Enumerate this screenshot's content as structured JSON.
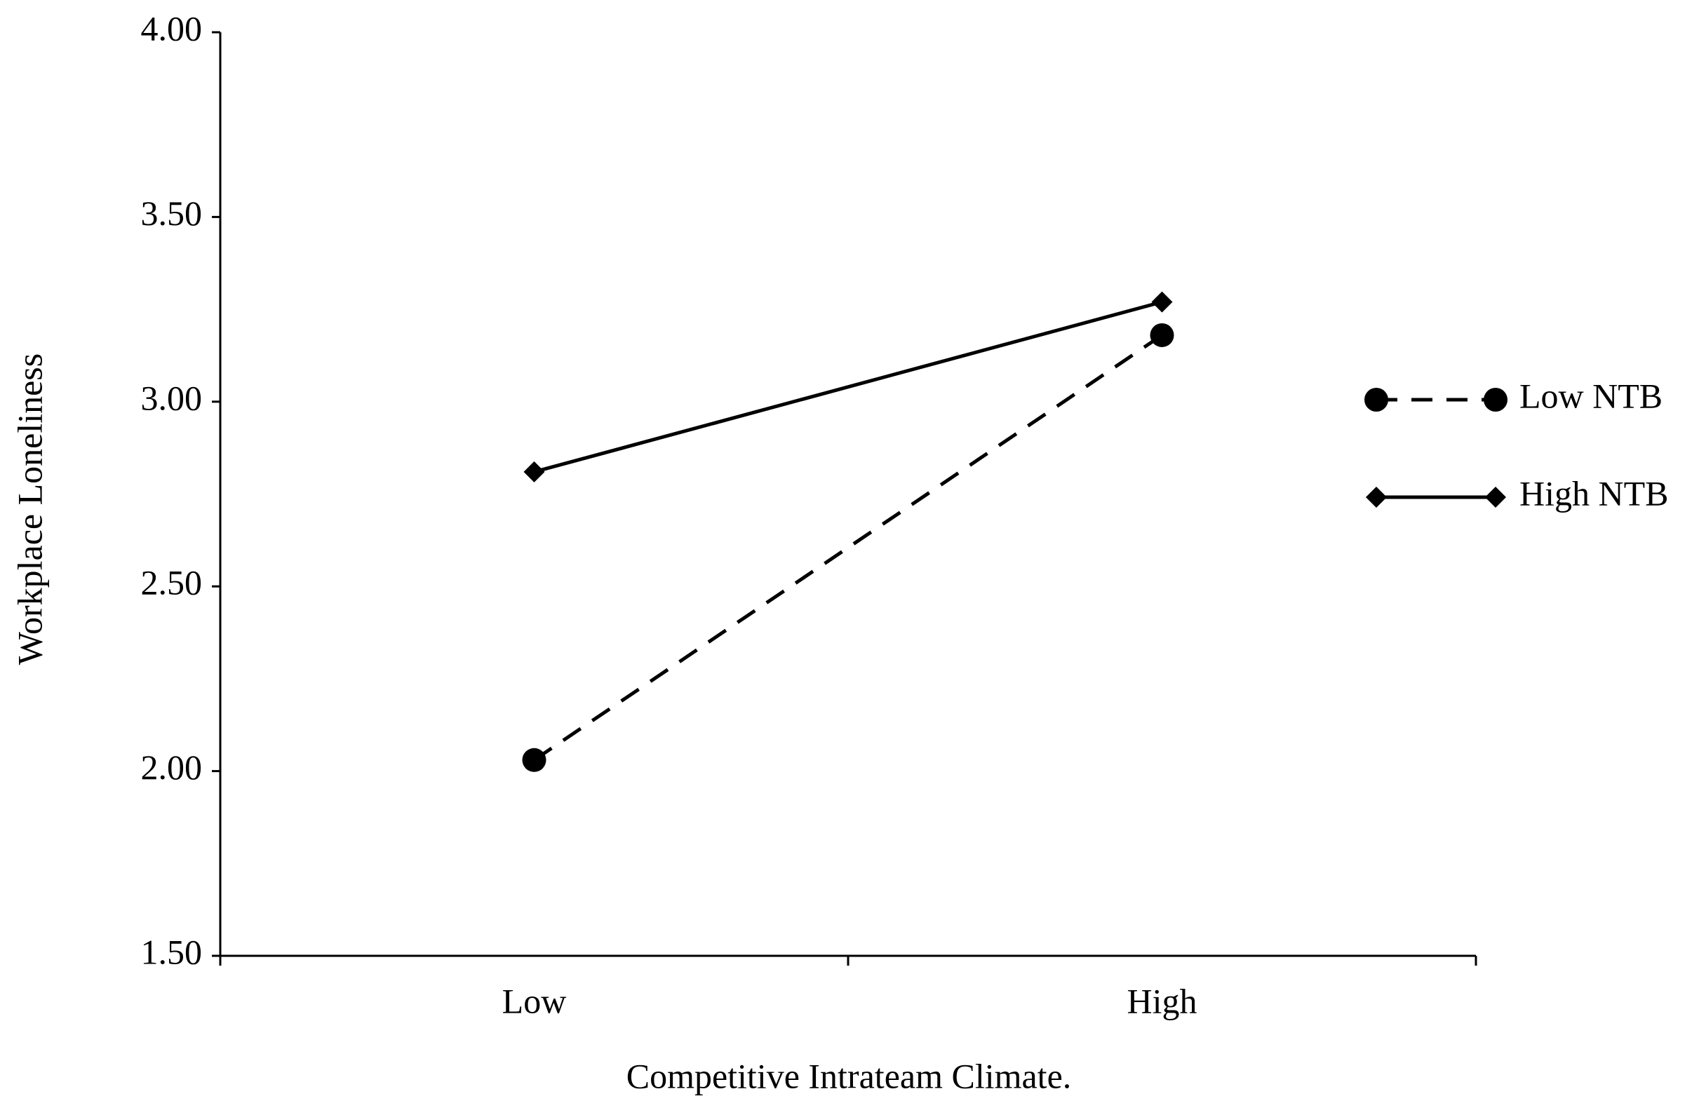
{
  "chart_data": {
    "type": "line",
    "x_label": "Competitive  Intrateam Climate.",
    "y_label": "Workplace Loneliness",
    "categories": [
      "Low",
      "High"
    ],
    "series": [
      {
        "name": "Low NTB",
        "color": "#000000",
        "line_style": "dashed",
        "marker": "circle",
        "values": [
          2.03,
          3.18
        ]
      },
      {
        "name": "High NTB",
        "color": "#000000",
        "line_style": "solid",
        "marker": "diamond",
        "values": [
          2.81,
          3.27
        ]
      }
    ],
    "ylim": [
      1.5,
      4.0
    ],
    "yticks": [
      {
        "value": 1.5,
        "label": "1.50"
      },
      {
        "value": 2.0,
        "label": "2.00"
      },
      {
        "value": 2.5,
        "label": "2.50"
      },
      {
        "value": 3.0,
        "label": "3.00"
      },
      {
        "value": 3.5,
        "label": "3.50"
      },
      {
        "value": 4.0,
        "label": "4.00"
      }
    ],
    "grid": false,
    "legend": "right"
  }
}
